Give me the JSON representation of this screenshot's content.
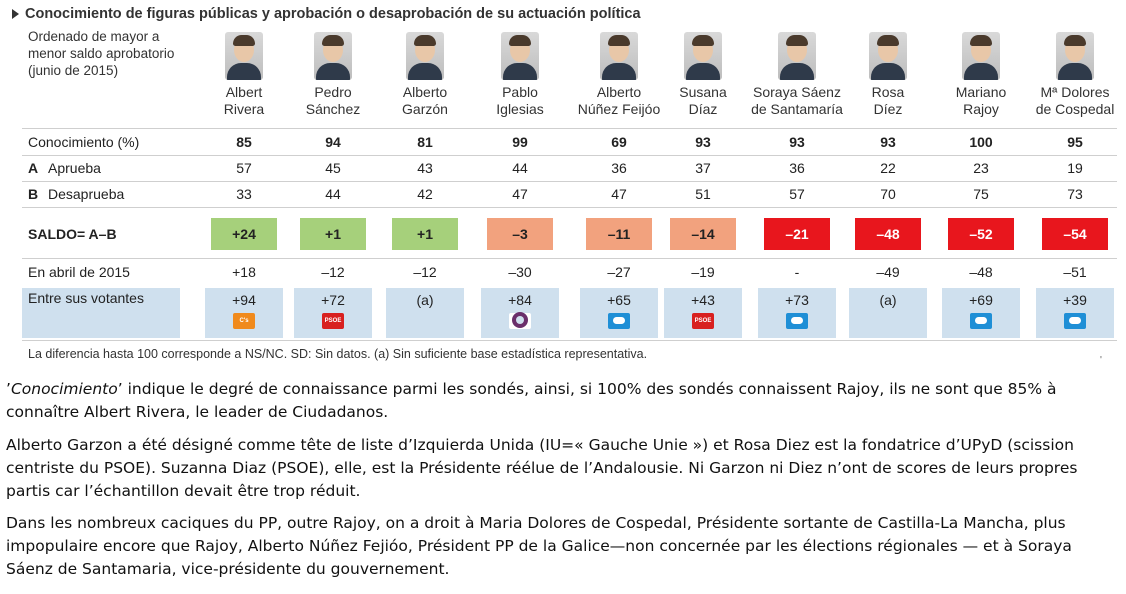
{
  "title": "Conocimiento de figuras públicas y aprobación o desaprobación de su actuación política",
  "order_note": "Ordenado de mayor a menor saldo aprobatorio (junio de 2015)",
  "rows": {
    "knowledge_label": "Conocimiento (%)",
    "approve_letter": "A",
    "approve_label": "Aprueba",
    "disapprove_letter": "B",
    "disapprove_label": "Desaprueba",
    "saldo_label": "SALDO= A–B",
    "april_label": "En abril de 2015",
    "voters_label": "Entre sus votantes"
  },
  "colors": {
    "green": "#a6d07b",
    "orange": "#f2a27e",
    "red": "#e8161d",
    "voters_band": "#cfe0ee"
  },
  "politicians": [
    {
      "name_line1": "Albert",
      "name_line2": "Rivera",
      "knowledge": "85",
      "approve": "57",
      "disapprove": "33",
      "saldo": "+24",
      "saldo_color": "green",
      "april": "+18",
      "voters": "+94",
      "party_logo": "cs-logo",
      "party_logo_text": "C's"
    },
    {
      "name_line1": "Pedro",
      "name_line2": "Sánchez",
      "knowledge": "94",
      "approve": "45",
      "disapprove": "44",
      "saldo": "+1",
      "saldo_color": "green",
      "april": "–12",
      "voters": "+72",
      "party_logo": "psoe-logo",
      "party_logo_text": "PSOE"
    },
    {
      "name_line1": "Alberto",
      "name_line2": "Garzón",
      "knowledge": "81",
      "approve": "43",
      "disapprove": "42",
      "saldo": "+1",
      "saldo_color": "green",
      "april": "–12",
      "voters": "(a)",
      "party_logo": "",
      "party_logo_text": ""
    },
    {
      "name_line1": "Pablo",
      "name_line2": "Iglesias",
      "knowledge": "99",
      "approve": "44",
      "disapprove": "47",
      "saldo": "–3",
      "saldo_color": "orange",
      "april": "–30",
      "voters": "+84",
      "party_logo": "podemos-logo",
      "party_logo_text": ""
    },
    {
      "name_line1": "Alberto",
      "name_line2": "Núñez Feijóo",
      "knowledge": "69",
      "approve": "36",
      "disapprove": "47",
      "saldo": "–11",
      "saldo_color": "orange",
      "april": "–27",
      "voters": "+65",
      "party_logo": "pp-logo",
      "party_logo_text": ""
    },
    {
      "name_line1": "Susana",
      "name_line2": "Díaz",
      "knowledge": "93",
      "approve": "37",
      "disapprove": "51",
      "saldo": "–14",
      "saldo_color": "orange",
      "april": "–19",
      "voters": "+43",
      "party_logo": "psoe-logo",
      "party_logo_text": "PSOE"
    },
    {
      "name_line1": "Soraya Sáenz",
      "name_line2": "de Santamaría",
      "knowledge": "93",
      "approve": "36",
      "disapprove": "57",
      "saldo": "–21",
      "saldo_color": "red",
      "april": "-",
      "voters": "+73",
      "party_logo": "pp-logo",
      "party_logo_text": ""
    },
    {
      "name_line1": "Rosa",
      "name_line2": "Díez",
      "knowledge": "93",
      "approve": "22",
      "disapprove": "70",
      "saldo": "–48",
      "saldo_color": "red",
      "april": "–49",
      "voters": "(a)",
      "party_logo": "",
      "party_logo_text": ""
    },
    {
      "name_line1": "Mariano",
      "name_line2": "Rajoy",
      "knowledge": "100",
      "approve": "23",
      "disapprove": "75",
      "saldo": "–52",
      "saldo_color": "red",
      "april": "–48",
      "voters": "+69",
      "party_logo": "pp-logo",
      "party_logo_text": ""
    },
    {
      "name_line1": "Mª Dolores",
      "name_line2": "de Cospedal",
      "knowledge": "95",
      "approve": "19",
      "disapprove": "73",
      "saldo": "–54",
      "saldo_color": "red",
      "april": "–51",
      "voters": "+39",
      "party_logo": "pp-logo",
      "party_logo_text": ""
    }
  ],
  "footnote": "La diferencia hasta 100 corresponde a NS/NC. SD: Sin datos. (a) Sin suficiente base estadística representativa.",
  "comment": {
    "p1_italic": "Conocimiento",
    "p1_rest": "’ indique le degré de connaissance  parmi les sondés, ainsi, si 100% des sondés connaissent Rajoy, ils ne sont que 85% à connaître Albert Rivera, le leader de Ciudadanos.",
    "p2": "Alberto Garzon a été désigné comme tête de liste d’Izquierda Unida (IU=« Gauche Unie ») et Rosa Diez est la fondatrice d’UPyD (scission centriste du PSOE). Suzanna Diaz (PSOE), elle, est la Présidente réélue de l’Andalousie. Ni Garzon ni Diez n’ont de scores de leurs propres partis car l’échantillon devait être trop réduit.",
    "p3": "Dans les nombreux caciques du PP, outre Rajoy, on a droit à Maria Dolores de Cospedal, Présidente sortante de Castilla-La Mancha, plus impopulaire encore que Rajoy, Alberto Núñez Fejióo, Président PP de la Galice—non concernée par les élections régionales — et à Soraya Sáenz de Santamaria, vice-présidente du gouvernement."
  }
}
